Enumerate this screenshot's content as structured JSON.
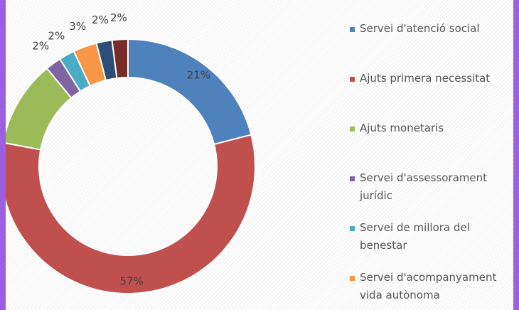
{
  "chart_data": {
    "type": "donut",
    "categories": [
      "Servei d'atenció social",
      "Ajuts primera necessitat",
      "Ajuts monetaris",
      "Servei d'assessorament jurídic",
      "Servei de millora del benestar",
      "Servei d'acompanyament vida autònoma",
      null,
      null
    ],
    "values": [
      21,
      57,
      11,
      2,
      2,
      3,
      2,
      2
    ],
    "value_labels": [
      "21%",
      "57%",
      null,
      "2%",
      "2%",
      "3%",
      "2%",
      "2%"
    ],
    "colors": [
      "#4f81bd",
      "#c0504d",
      "#9bbb59",
      "#8064a2",
      "#4bacc6",
      "#f79646",
      "#2c4d75",
      "#772c2a"
    ]
  }
}
